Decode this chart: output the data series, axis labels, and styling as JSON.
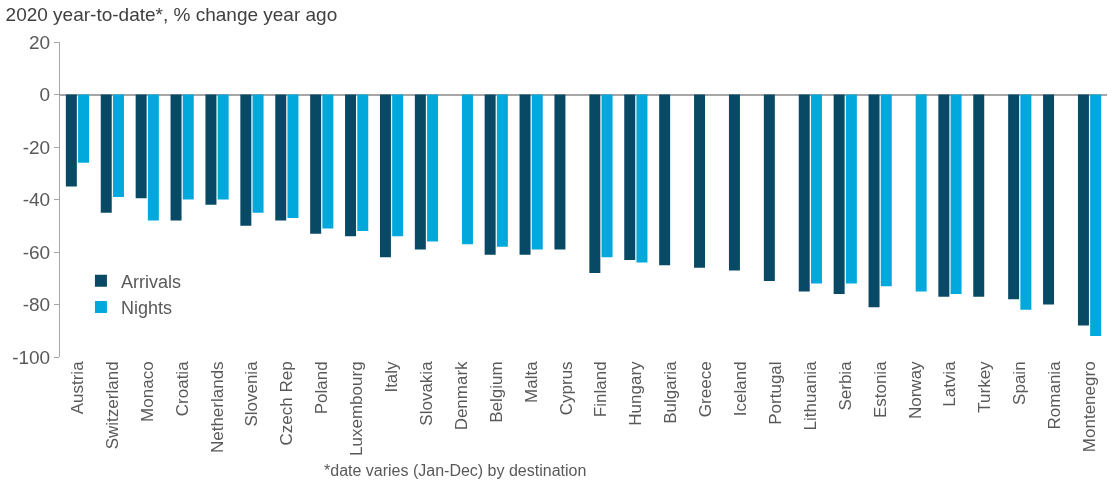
{
  "chart_data": {
    "type": "bar",
    "title": "2020 year-to-date*, % change year ago",
    "categories": [
      "Austria",
      "Switzerland",
      "Monaco",
      "Croatia",
      "Netherlands",
      "Slovenia",
      "Czech Rep",
      "Poland",
      "Luxembourg",
      "Italy",
      "Slovakia",
      "Denmark",
      "Belgium",
      "Malta",
      "Cyprus",
      "Finland",
      "Hungary",
      "Bulgaria",
      "Greece",
      "Iceland",
      "Portugal",
      "Lithuania",
      "Serbia",
      "Estonia",
      "Norway",
      "Latvia",
      "Turkey",
      "Spain",
      "Romania",
      "Montenegro"
    ],
    "series": [
      {
        "name": "Arrivals",
        "color": "#084a66",
        "values": [
          -35,
          -45,
          -39.5,
          -48,
          -42,
          -50,
          -48,
          -53,
          -54,
          -62,
          -59,
          null,
          -61,
          -61,
          -59,
          -68,
          -63,
          -65,
          -66,
          -67,
          -71,
          -75,
          -76,
          -81,
          null,
          -77,
          -77,
          -78,
          -80,
          -88
        ]
      },
      {
        "name": "Nights",
        "color": "#00a8dc",
        "values": [
          -26,
          -39,
          -48,
          -40,
          -40,
          -45,
          -47,
          -51,
          -52,
          -54,
          -56,
          -57,
          -58,
          -59,
          null,
          -62,
          -64,
          null,
          null,
          null,
          null,
          -72,
          -72,
          -73,
          -75,
          -76,
          null,
          -82,
          null,
          -92
        ]
      }
    ],
    "ylim": [
      -100,
      20
    ],
    "yticks": [
      -100,
      -80,
      -60,
      -40,
      -20,
      0,
      20
    ],
    "legend": "bottom left",
    "annotations": [
      "*date varies (Jan-Dec) by destination"
    ]
  }
}
